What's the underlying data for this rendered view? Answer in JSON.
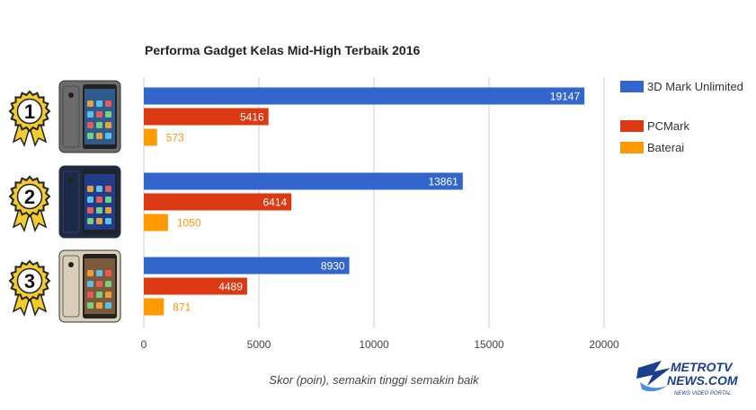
{
  "colors": {
    "3d_mark": "#3366cc",
    "pcmark": "#dc3912",
    "baterai": "#ff9900",
    "grid": "#cccccc",
    "text": "#444444",
    "medal_gold": "#f2cc2e"
  },
  "chart_data": {
    "type": "bar",
    "orientation": "horizontal",
    "title": "Performa Gadget Kelas Mid-High Terbaik 2016",
    "xlabel": "Skor (poin), semakin tinggi semakin baik",
    "ylabel": "",
    "xlim": [
      0,
      20000
    ],
    "xticks": [
      0,
      5000,
      10000,
      15000,
      20000
    ],
    "grid": true,
    "legend_position": "right",
    "categories": [
      "1",
      "2",
      "3"
    ],
    "series": [
      {
        "name": "3D Mark Unlimited",
        "color": "#3366cc",
        "values": [
          19147,
          13861,
          8930
        ]
      },
      {
        "name": "PCMark",
        "color": "#dc3912",
        "values": [
          5416,
          6414,
          4489
        ]
      },
      {
        "name": "Baterai",
        "color": "#ff9900",
        "values": [
          573,
          1050,
          871
        ]
      }
    ]
  },
  "legend": [
    {
      "label": "3D Mark Unlimited",
      "color": "#3366cc"
    },
    {
      "label": "PCMark",
      "color": "#dc3912"
    },
    {
      "label": "Baterai",
      "color": "#ff9900"
    }
  ],
  "logo": {
    "brand": "METROTV NEWS.COM",
    "tagline": "NEWS VIDEO PORTAL"
  }
}
